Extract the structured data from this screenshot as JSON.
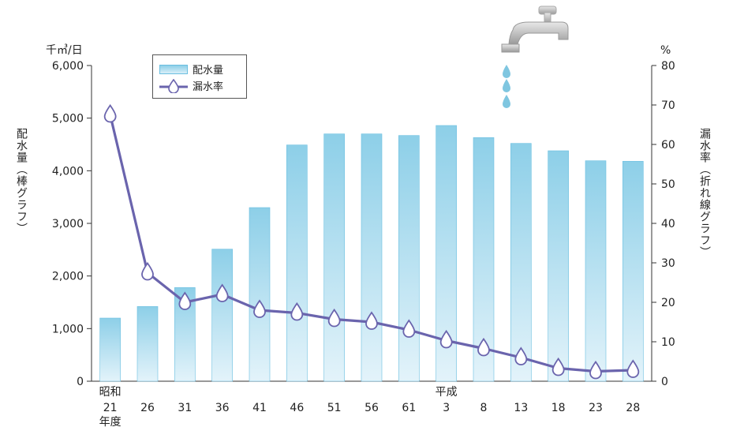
{
  "chart_data": {
    "type": "bar",
    "categories": [
      "21",
      "26",
      "31",
      "36",
      "41",
      "46",
      "51",
      "56",
      "61",
      "3",
      "8",
      "13",
      "18",
      "23",
      "28"
    ],
    "era_labels": {
      "first": "昭和",
      "heisei": "平成",
      "year_suffix": "年度"
    },
    "series": [
      {
        "name": "配水量",
        "type": "bar",
        "axis": "left",
        "values": [
          1200,
          1420,
          1780,
          2510,
          3300,
          4490,
          4700,
          4700,
          4670,
          4860,
          4630,
          4520,
          4380,
          4190,
          4180
        ]
      },
      {
        "name": "漏水率",
        "type": "line",
        "axis": "right",
        "values": [
          67.5,
          27.5,
          20,
          22,
          18,
          17.3,
          15.7,
          15,
          13,
          10.3,
          8.3,
          6,
          3.3,
          2.5,
          2.8
        ]
      }
    ],
    "y_left": {
      "unit": "千㎥/日",
      "label": "配水量（棒グラフ）",
      "range": [
        0,
        6000
      ],
      "ticks": [
        "0",
        "1,000",
        "2,000",
        "3,000",
        "4,000",
        "5,000",
        "6,000"
      ]
    },
    "y_right": {
      "unit": "%",
      "label": "漏水率（折れ線グラフ）",
      "range": [
        0,
        80
      ],
      "ticks": [
        "0",
        "10",
        "20",
        "30",
        "40",
        "50",
        "60",
        "70",
        "80"
      ]
    },
    "legend_position": "top-left",
    "colors": {
      "bar_top": "#8dcfe8",
      "bar_bottom": "#dff1f9",
      "bar_edge": "#6bbfe0",
      "line": "#6a64ad",
      "marker_fill": "#ffffff",
      "marker_stroke": "#6a64ad"
    }
  }
}
